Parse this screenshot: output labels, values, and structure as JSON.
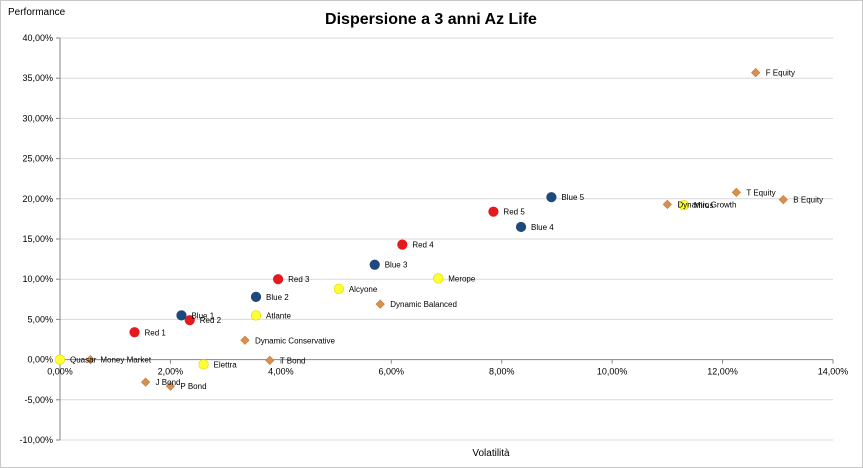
{
  "chart_data": {
    "type": "scatter",
    "title": "Dispersione a 3 anni Az Life",
    "xlabel": "Volatilità",
    "ylabel": "Performance",
    "xlim": [
      0,
      14
    ],
    "ylim": [
      -10,
      40
    ],
    "x_ticks": [
      "0,00%",
      "2,00%",
      "4,00%",
      "6,00%",
      "8,00%",
      "10,00%",
      "12,00%",
      "14,00%"
    ],
    "y_ticks": [
      "40,00%",
      "35,00%",
      "30,00%",
      "25,00%",
      "20,00%",
      "15,00%",
      "10,00%",
      "5,00%",
      "0,00%",
      "-5,00%",
      "-10,00%"
    ],
    "grid": "horizontal",
    "colors": {
      "red": "#e41a1c",
      "blue": "#1f497d",
      "yellow": "#ffff33",
      "orange": "#d9904f"
    },
    "series": [
      {
        "name": "Red",
        "marker": "circle",
        "color": "#e41a1c",
        "points": [
          {
            "label": "Red 1",
            "x": 1.35,
            "y": 3.4
          },
          {
            "label": "Red 2",
            "x": 2.35,
            "y": 4.9
          },
          {
            "label": "Red 3",
            "x": 3.95,
            "y": 10.0
          },
          {
            "label": "Red 4",
            "x": 6.2,
            "y": 14.3
          },
          {
            "label": "Red 5",
            "x": 7.85,
            "y": 18.4
          }
        ]
      },
      {
        "name": "Blue",
        "marker": "circle",
        "color": "#1f497d",
        "points": [
          {
            "label": "Blue 1",
            "x": 2.2,
            "y": 5.5
          },
          {
            "label": "Blue 2",
            "x": 3.55,
            "y": 7.8
          },
          {
            "label": "Blue 3",
            "x": 5.7,
            "y": 11.8
          },
          {
            "label": "Blue 4",
            "x": 8.35,
            "y": 16.5
          },
          {
            "label": "Blue 5",
            "x": 8.9,
            "y": 20.2
          }
        ]
      },
      {
        "name": "Yellow",
        "marker": "circle",
        "color": "#ffff33",
        "points": [
          {
            "label": "Quasar",
            "x": 0.0,
            "y": 0.0
          },
          {
            "label": "Elettra",
            "x": 2.6,
            "y": -0.6
          },
          {
            "label": "Atlante",
            "x": 3.55,
            "y": 5.5
          },
          {
            "label": "Alcyone",
            "x": 5.05,
            "y": 8.8
          },
          {
            "label": "Merope",
            "x": 6.85,
            "y": 10.1
          },
          {
            "label": "Mirus",
            "x": 11.3,
            "y": 19.2
          }
        ]
      },
      {
        "name": "Orange",
        "marker": "diamond",
        "color": "#d9904f",
        "points": [
          {
            "label": "Money Market",
            "x": 0.55,
            "y": 0.0
          },
          {
            "label": "J Bond",
            "x": 1.55,
            "y": -2.8
          },
          {
            "label": "P Bond",
            "x": 2.0,
            "y": -3.3
          },
          {
            "label": "T Bond",
            "x": 3.8,
            "y": -0.1
          },
          {
            "label": "Dynamic Conservative",
            "x": 3.35,
            "y": 2.4
          },
          {
            "label": "Dynamic Balanced",
            "x": 5.8,
            "y": 6.9
          },
          {
            "label": "Dynamic Growth",
            "x": 11.0,
            "y": 19.3
          },
          {
            "label": "T Equity",
            "x": 12.25,
            "y": 20.8
          },
          {
            "label": "B Equity",
            "x": 13.1,
            "y": 19.9
          },
          {
            "label": "F Equity",
            "x": 12.6,
            "y": 35.7
          }
        ]
      }
    ]
  }
}
